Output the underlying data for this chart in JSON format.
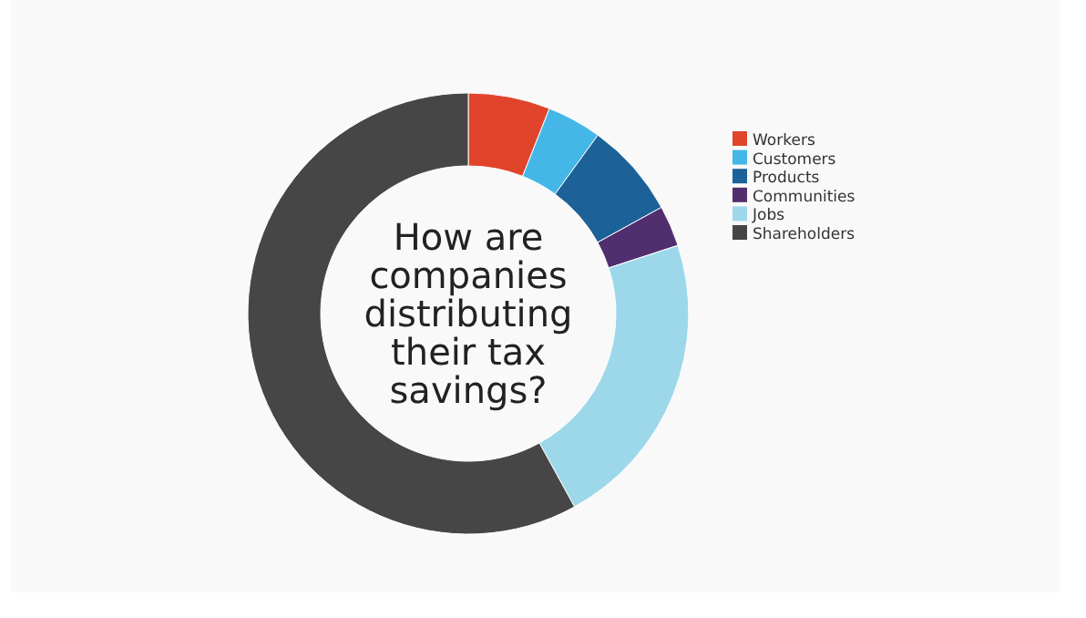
{
  "chart_data": {
    "type": "donut",
    "title": "How are companies distributing their tax savings?",
    "categories": [
      "Workers",
      "Customers",
      "Products",
      "Communities",
      "Jobs",
      "Shareholders"
    ],
    "values": [
      6,
      4,
      7,
      3,
      22,
      58
    ],
    "colors": [
      "#e0452b",
      "#44b7e8",
      "#1c6299",
      "#512f6e",
      "#9dd8ea",
      "#464646"
    ],
    "legend": "right"
  }
}
